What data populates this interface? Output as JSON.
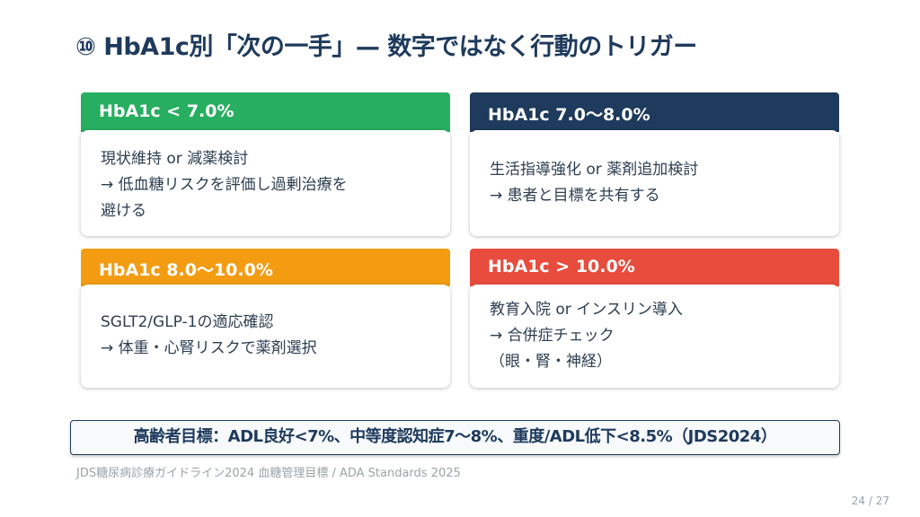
{
  "title": "⑩ HbA1c別「次の一手」— 数字ではなく行動のトリガー",
  "cards": [
    {
      "header": "HbA1c < 7.0%",
      "color": "#27ae60",
      "lines": [
        "現状維持 or 減薬検討",
        "→ 低血糖リスクを評価し過剰治療を",
        "避ける"
      ]
    },
    {
      "header": "HbA1c 7.0〜8.0%",
      "color": "#1e3a5c",
      "lines": [
        "生活指導強化 or 薬剤追加検討",
        "→ 患者と目標を共有する"
      ]
    },
    {
      "header": "HbA1c 8.0〜10.0%",
      "color": "#f39c12",
      "lines": [
        "SGLT2/GLP-1の適応確認",
        "→ 体重・心腎リスクで薬剤選択"
      ]
    },
    {
      "header": "HbA1c > 10.0%",
      "color": "#e74c3c",
      "lines": [
        "教育入院 or インスリン導入",
        "→ 合併症チェック",
        "（眼・腎・神経）"
      ]
    }
  ],
  "note": "高齢者目標：ADL良好<7%、中等度認知症7〜8%、重度/ADL低下<8.5%（JDS2024）",
  "source": "JDS糖尿病診療ガイドライン2024 血糖管理目標 / ADA Standards 2025",
  "page": "24 / 27"
}
